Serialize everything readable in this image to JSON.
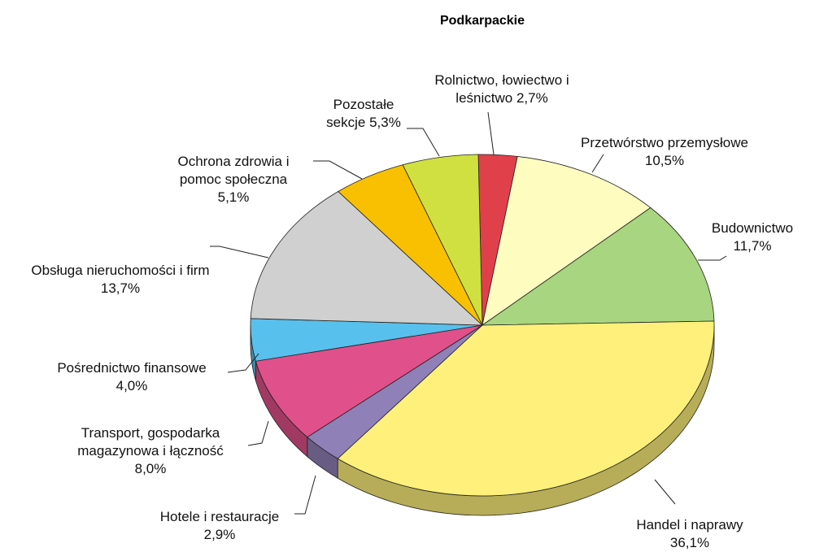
{
  "chart_data": {
    "type": "pie",
    "title": "Podkarpackie",
    "categories": [
      "Rolnictwo, łowiectwo i leśnictwo",
      "Przetwórstwo przemysłowe",
      "Budownictwo",
      "Handel i naprawy",
      "Hotele i restauracje",
      "Transport, gospodarka magazynowa i łączność",
      "Pośrednictwo finansowe",
      "Obsługa nieruchomości i firm",
      "Ochrona zdrowia i pomoc społeczna",
      "Pozostałe sekcje"
    ],
    "values": [
      2.7,
      10.5,
      11.7,
      36.1,
      2.9,
      8.0,
      4.0,
      13.7,
      5.1,
      5.3
    ],
    "value_labels": [
      "2,7%",
      "10,5%",
      "11,7%",
      "36,1%",
      "2,9%",
      "8,0%",
      "4,0%",
      "13,7%",
      "5,1%",
      "5,3%"
    ],
    "colors": [
      "#e0404a",
      "#fffcc0",
      "#a8d57f",
      "#fef07a",
      "#9080b8",
      "#e0508a",
      "#58c0ec",
      "#d0d0d0",
      "#f8c000",
      "#d0e040"
    ]
  }
}
